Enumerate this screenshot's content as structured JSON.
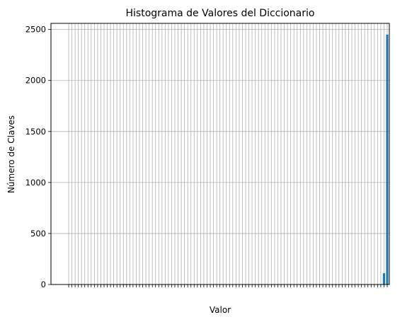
{
  "chart_data": {
    "type": "bar",
    "title": "Histograma de Valores del Diccionario",
    "xlabel": "Valor",
    "ylabel": "Número de Claves",
    "ylim": [
      0,
      2560
    ],
    "yticks": [
      0,
      500,
      1000,
      1500,
      2000,
      2500
    ],
    "grid": true,
    "legend": "none",
    "bar_color": "#1f77b4",
    "categories_note": "x tick labels are overlapping and illegible in the original",
    "bars": [
      {
        "position": 1,
        "value": 3
      },
      {
        "position": 2,
        "value": 3
      },
      {
        "position": 3,
        "value": 3
      },
      {
        "position": 4,
        "value": 3
      },
      {
        "position": 5,
        "value": 3
      },
      {
        "position": 6,
        "value": 3
      },
      {
        "position": 7,
        "value": 3
      },
      {
        "position": 8,
        "value": 3
      },
      {
        "position": 9,
        "value": 3
      },
      {
        "position": 10,
        "value": 3
      },
      {
        "position": 11,
        "value": 3
      },
      {
        "position": 12,
        "value": 3
      },
      {
        "position": 13,
        "value": 2
      },
      {
        "position": 14,
        "value": 2
      },
      {
        "position": 15,
        "value": 2
      },
      {
        "position": 16,
        "value": 2
      },
      {
        "position": 17,
        "value": 2
      },
      {
        "position": 18,
        "value": 1
      },
      {
        "position": 19,
        "value": 1
      },
      {
        "position": 20,
        "value": 1
      },
      {
        "position": 99,
        "value": 110
      },
      {
        "position": 100,
        "value": 2450
      }
    ]
  }
}
